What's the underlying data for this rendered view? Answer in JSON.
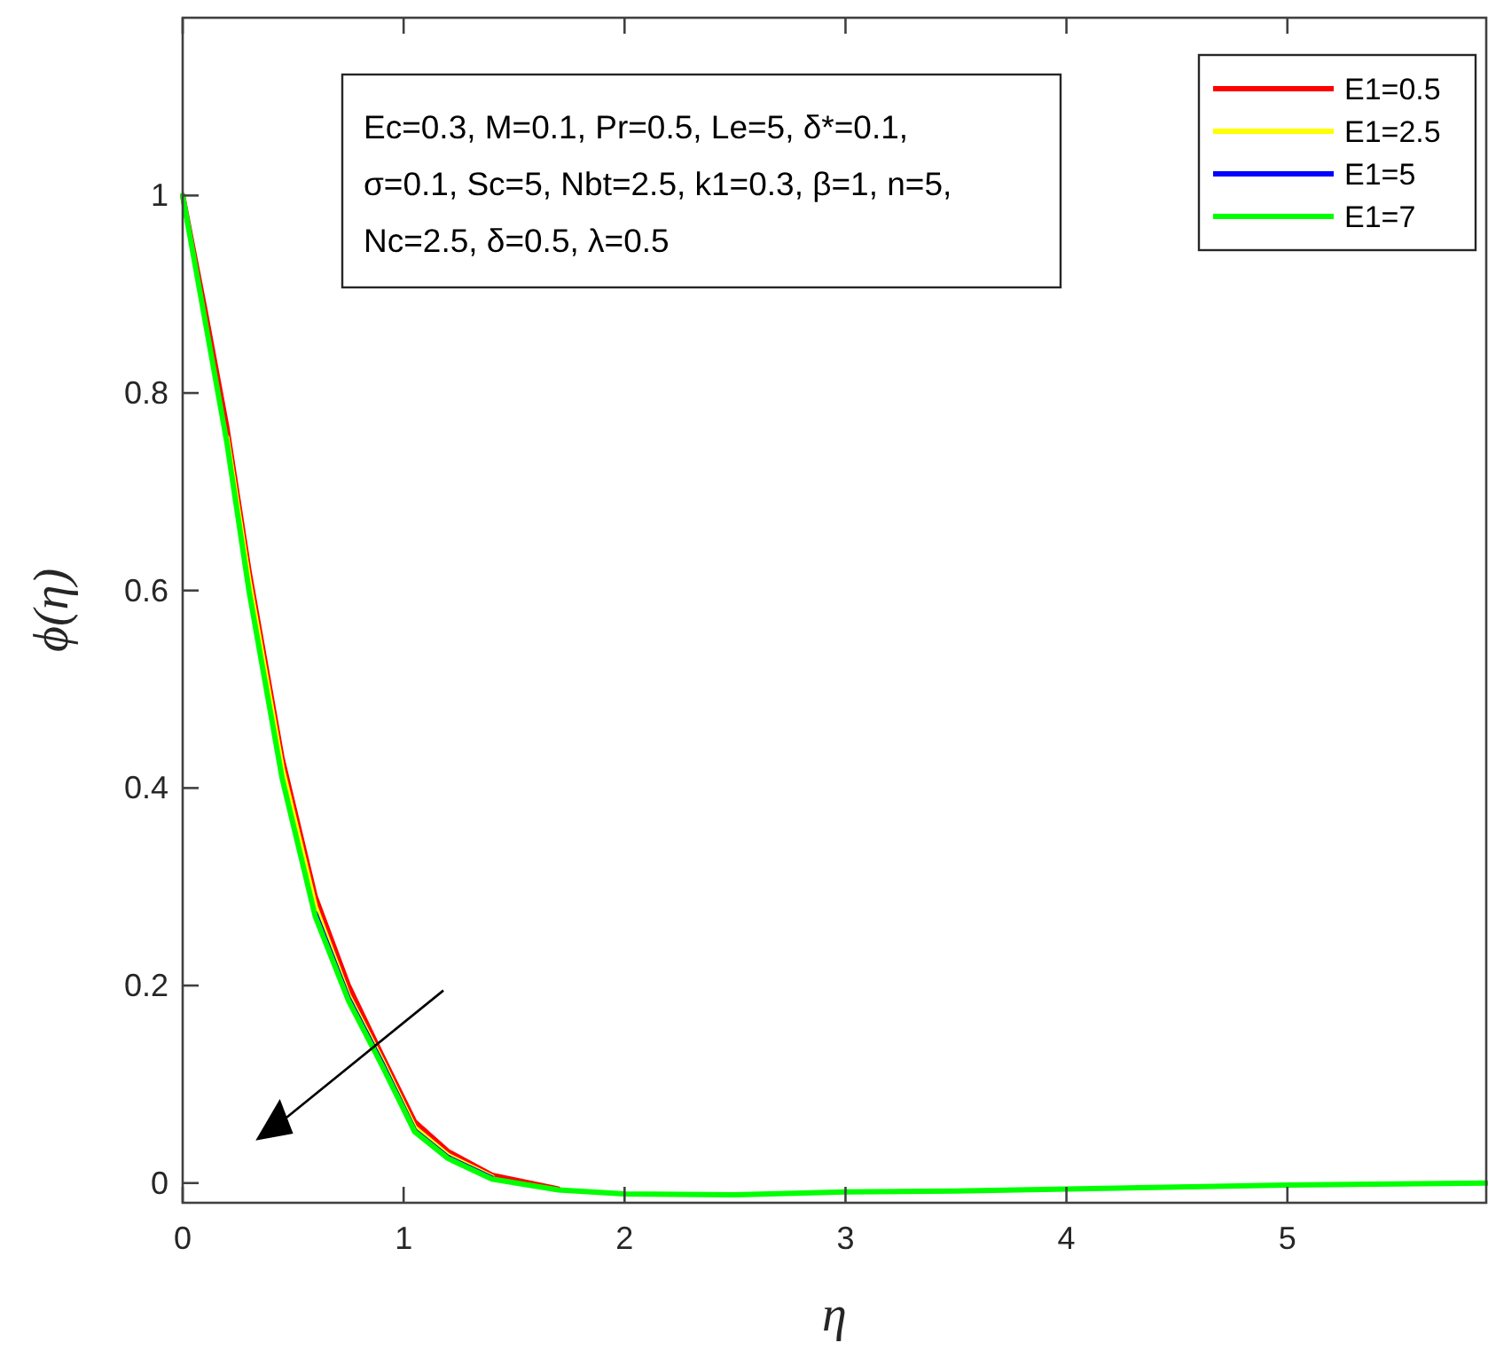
{
  "chart_data": {
    "type": "line",
    "xlabel": "η",
    "ylabel": "ϕ(η)",
    "xlim": [
      0,
      5.9
    ],
    "ylim": [
      -0.02,
      1.18
    ],
    "xticks": [
      0,
      1,
      2,
      3,
      4,
      5
    ],
    "yticks": [
      0,
      0.2,
      0.4,
      0.6,
      0.8,
      1
    ],
    "grid": false,
    "legend": "top right",
    "marker": "none",
    "line_style": "solid",
    "x": [
      0,
      0.1,
      0.2,
      0.3,
      0.45,
      0.6,
      0.75,
      0.9,
      1.05,
      1.2,
      1.4,
      1.7,
      2,
      2.5,
      3,
      3.5,
      4,
      4.5,
      5,
      5.5,
      5.9
    ],
    "series": [
      {
        "name": "E1=0.5",
        "color": "#ff0000",
        "values": [
          1,
          0.885,
          0.765,
          0.62,
          0.43,
          0.29,
          0.2,
          0.13,
          0.062,
          0.032,
          0.008,
          -0.006,
          null,
          null,
          null,
          null,
          null,
          null,
          null,
          null,
          null
        ]
      },
      {
        "name": "E1=2.5",
        "color": "#ffff00",
        "values": [
          null,
          null,
          0.755,
          0.61,
          0.42,
          0.28,
          0.19,
          0.125,
          0.056,
          0.028,
          0.006,
          null,
          null,
          null,
          null,
          null,
          null,
          null,
          null,
          null,
          null
        ]
      },
      {
        "name": "E1=5",
        "color": "#0000ff",
        "values": [
          null,
          null,
          null,
          null,
          null,
          0.273,
          0.187,
          0.122,
          0.053,
          0.026,
          0.005,
          null,
          null,
          null,
          null,
          null,
          null,
          null,
          null,
          null,
          null
        ]
      },
      {
        "name": "E1=7",
        "color": "#00ff00",
        "values": [
          1,
          0.875,
          0.75,
          0.6,
          0.41,
          0.27,
          0.185,
          0.12,
          0.052,
          0.025,
          0.004,
          -0.007,
          -0.011,
          -0.012,
          -0.009,
          -0.008,
          -0.006,
          -0.004,
          -0.002,
          -0.001,
          0
        ]
      }
    ],
    "annotations": [
      "Ec=0.3, M=0.1, Pr=0.5, Le=5, δ*=0.1,",
      "σ=0.1, Sc=5, Nbt=2.5, k1=0.3, β=1, n=5,",
      "Nc=2.5, δ=0.5, λ=0.5"
    ]
  }
}
